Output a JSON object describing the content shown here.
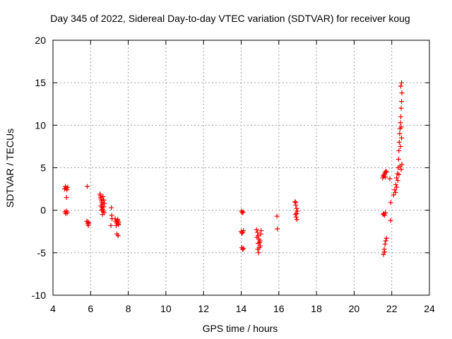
{
  "chart_data": {
    "type": "scatter",
    "title": "Day 345 of 2022, Sidereal Day-to-day VTEC variation (SDTVAR) for receiver koug",
    "xlabel": "GPS time / hours",
    "ylabel": "SDTVAR / TECUs",
    "xlim": [
      4,
      24
    ],
    "ylim": [
      -10,
      20
    ],
    "xticks": [
      "4",
      "6",
      "8",
      "10",
      "12",
      "14",
      "16",
      "18",
      "20",
      "22",
      "24"
    ],
    "yticks": [
      "-10",
      "-5",
      "0",
      "5",
      "10",
      "15",
      "20"
    ],
    "grid": true,
    "marker": "+",
    "series": [
      {
        "name": "SDTVAR",
        "color": "#ff0000",
        "points": [
          [
            4.62,
            2.5
          ],
          [
            4.66,
            2.8
          ],
          [
            4.7,
            2.6
          ],
          [
            4.74,
            2.4
          ],
          [
            4.78,
            2.7
          ],
          [
            4.72,
            1.5
          ],
          [
            4.64,
            -0.2
          ],
          [
            4.68,
            -0.4
          ],
          [
            4.72,
            -0.1
          ],
          [
            4.76,
            -0.3
          ],
          [
            5.82,
            2.8
          ],
          [
            5.8,
            -1.3
          ],
          [
            5.84,
            -1.6
          ],
          [
            5.88,
            -1.8
          ],
          [
            5.86,
            -1.4
          ],
          [
            5.9,
            -1.5
          ],
          [
            6.5,
            1.9
          ],
          [
            6.52,
            1.7
          ],
          [
            6.54,
            1.5
          ],
          [
            6.56,
            1.3
          ],
          [
            6.58,
            1.1
          ],
          [
            6.6,
            0.9
          ],
          [
            6.62,
            0.7
          ],
          [
            6.55,
            0.5
          ],
          [
            6.6,
            0.3
          ],
          [
            6.64,
            0.1
          ],
          [
            6.68,
            -0.1
          ],
          [
            6.72,
            -0.3
          ],
          [
            6.66,
            1.6
          ],
          [
            6.7,
            1.2
          ],
          [
            6.74,
            0.8
          ],
          [
            6.58,
            0.0
          ],
          [
            6.63,
            -0.5
          ],
          [
            6.7,
            0.4
          ],
          [
            7.1,
            0.3
          ],
          [
            7.12,
            -0.6
          ],
          [
            7.14,
            -1.0
          ],
          [
            7.08,
            -1.8
          ],
          [
            7.3,
            -1.0
          ],
          [
            7.34,
            -1.3
          ],
          [
            7.38,
            -1.5
          ],
          [
            7.42,
            -1.2
          ],
          [
            7.46,
            -1.6
          ],
          [
            7.5,
            -1.4
          ],
          [
            7.36,
            -1.8
          ],
          [
            7.44,
            -1.1
          ],
          [
            7.48,
            -1.7
          ],
          [
            7.4,
            -2.8
          ],
          [
            7.46,
            -3.0
          ],
          [
            14.02,
            -0.1
          ],
          [
            14.06,
            -0.3
          ],
          [
            14.1,
            -0.2
          ],
          [
            14.0,
            -2.5
          ],
          [
            14.04,
            -2.7
          ],
          [
            14.08,
            -2.6
          ],
          [
            14.12,
            -2.4
          ],
          [
            14.04,
            -4.4
          ],
          [
            14.08,
            -4.6
          ],
          [
            14.12,
            -4.5
          ],
          [
            14.82,
            -2.3
          ],
          [
            14.86,
            -2.6
          ],
          [
            14.9,
            -3.0
          ],
          [
            14.94,
            -3.4
          ],
          [
            14.98,
            -3.8
          ],
          [
            15.02,
            -4.2
          ],
          [
            14.88,
            -4.6
          ],
          [
            14.92,
            -5.0
          ],
          [
            14.96,
            -4.4
          ],
          [
            15.0,
            -3.6
          ],
          [
            15.04,
            -2.8
          ],
          [
            15.06,
            -2.4
          ],
          [
            14.84,
            -3.2
          ],
          [
            14.9,
            -3.9
          ],
          [
            15.9,
            -0.7
          ],
          [
            15.92,
            -2.2
          ],
          [
            16.86,
            1.0
          ],
          [
            16.9,
            0.6
          ],
          [
            16.94,
            0.2
          ],
          [
            16.98,
            -0.1
          ],
          [
            16.88,
            -0.5
          ],
          [
            16.92,
            -0.8
          ],
          [
            16.96,
            -1.1
          ],
          [
            16.9,
            0.9
          ],
          [
            16.94,
            -0.4
          ],
          [
            21.52,
            3.8
          ],
          [
            21.56,
            4.0
          ],
          [
            21.6,
            4.2
          ],
          [
            21.64,
            4.4
          ],
          [
            21.68,
            4.6
          ],
          [
            21.72,
            4.5
          ],
          [
            21.58,
            4.1
          ],
          [
            21.66,
            3.9
          ],
          [
            21.54,
            -0.5
          ],
          [
            21.58,
            -0.4
          ],
          [
            21.62,
            -0.6
          ],
          [
            21.66,
            -0.3
          ],
          [
            21.56,
            -5.2
          ],
          [
            21.6,
            -4.6
          ],
          [
            21.64,
            -4.0
          ],
          [
            21.68,
            -3.6
          ],
          [
            21.72,
            -3.3
          ],
          [
            21.62,
            -4.9
          ],
          [
            21.9,
            3.7
          ],
          [
            21.94,
            0.9
          ],
          [
            21.94,
            -1.2
          ],
          [
            22.1,
            1.8
          ],
          [
            22.16,
            2.4
          ],
          [
            22.22,
            3.0
          ],
          [
            22.26,
            3.8
          ],
          [
            22.3,
            4.3
          ],
          [
            22.34,
            5.0
          ],
          [
            22.36,
            6.0
          ],
          [
            22.38,
            7.0
          ],
          [
            22.4,
            8.0
          ],
          [
            22.42,
            9.0
          ],
          [
            22.44,
            9.6
          ],
          [
            22.46,
            10.3
          ],
          [
            22.48,
            11.0
          ],
          [
            22.5,
            12.0
          ],
          [
            22.52,
            12.8
          ],
          [
            22.54,
            13.8
          ],
          [
            22.48,
            14.6
          ],
          [
            22.52,
            15.0
          ],
          [
            22.2,
            2.1
          ],
          [
            22.26,
            2.7
          ],
          [
            22.32,
            3.5
          ],
          [
            22.38,
            4.2
          ],
          [
            22.44,
            5.2
          ],
          [
            22.5,
            4.8
          ],
          [
            22.54,
            5.4
          ],
          [
            22.46,
            7.5
          ],
          [
            22.52,
            8.5
          ],
          [
            22.5,
            9.8
          ]
        ]
      }
    ]
  }
}
